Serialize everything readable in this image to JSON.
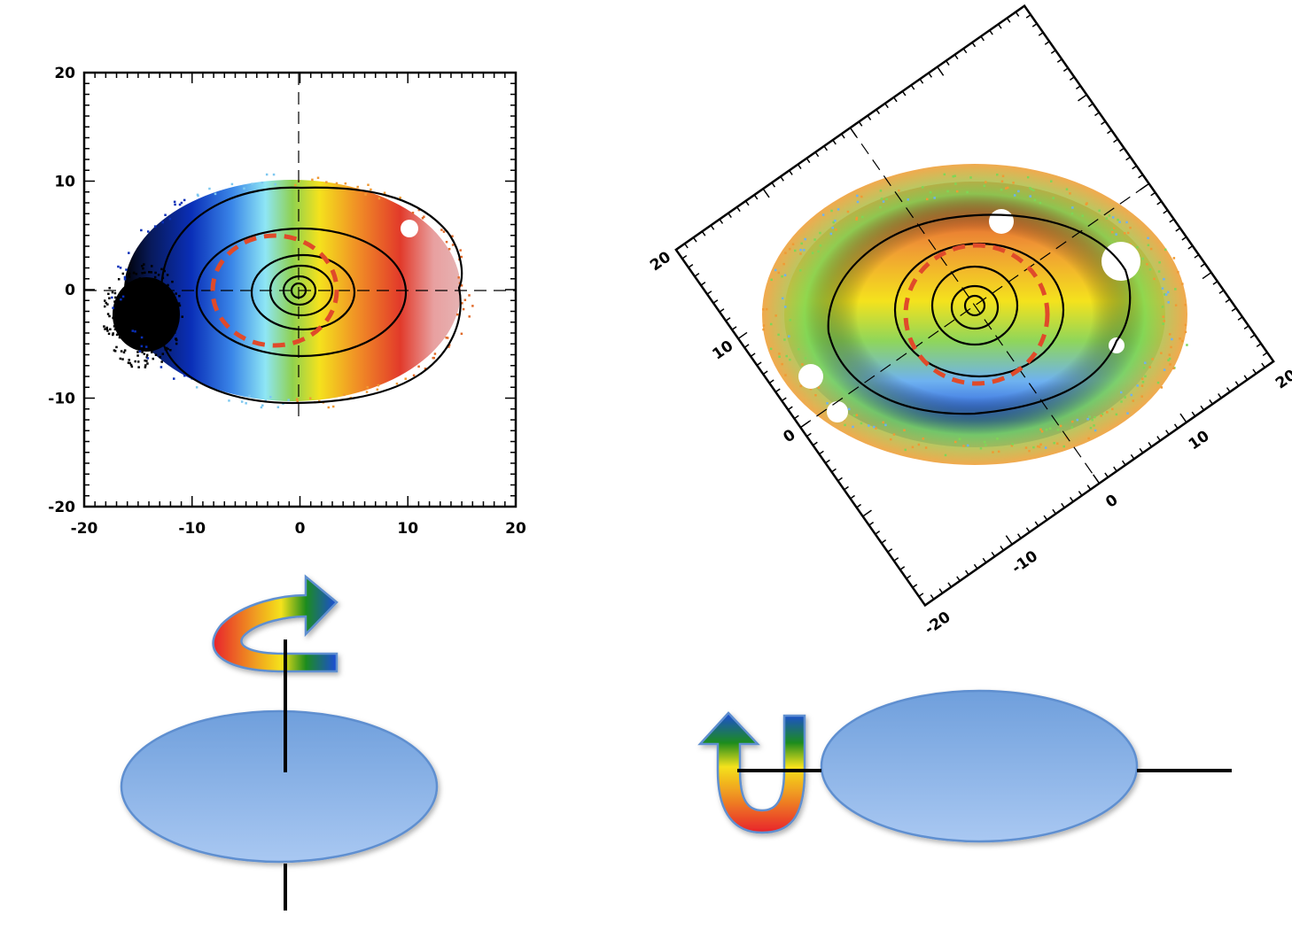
{
  "chart_data": [
    {
      "type": "heatmap",
      "panel": "left",
      "xlim": [
        -20,
        20
      ],
      "ylim": [
        -20,
        20
      ],
      "x_ticks": [
        "-20",
        "-10",
        "0",
        "10",
        "20"
      ],
      "y_ticks": [
        "20",
        "10",
        "0",
        "-10",
        "-20"
      ],
      "crosshair": "dashed lines at x=0 and y=0",
      "color_gradient": "blue (left, x<0) to red (right, x>0)",
      "contours": "black isophotes centred at origin",
      "dashed_ellipse": "red dashed ellipse",
      "tilt_deg": 0
    },
    {
      "type": "heatmap",
      "panel": "right",
      "xlim": [
        -20,
        20
      ],
      "ylim": [
        -20,
        20
      ],
      "x_ticks": [
        "-20",
        "-10",
        "0",
        "10",
        "20"
      ],
      "y_ticks": [
        "0",
        "10",
        "20"
      ],
      "color_gradient": "green/orange outer, red top, blue bottom",
      "contours": "black isophotes centred at origin",
      "dashed_ellipse": "red dashed ellipse",
      "tilt_deg": -35
    }
  ],
  "diagrams": {
    "left": {
      "ellipse_fill": "#8fb5e8",
      "arrow_gradient": [
        "#e8222c",
        "#f4e21d",
        "#1f8c1f",
        "#1f4bd8"
      ],
      "axis": "vertical"
    },
    "right": {
      "ellipse_fill": "#8fb5e8",
      "arrow_gradient": [
        "#e8222c",
        "#f4e21d",
        "#1f8c1f",
        "#1f4bd8"
      ],
      "axis": "horizontal"
    }
  }
}
